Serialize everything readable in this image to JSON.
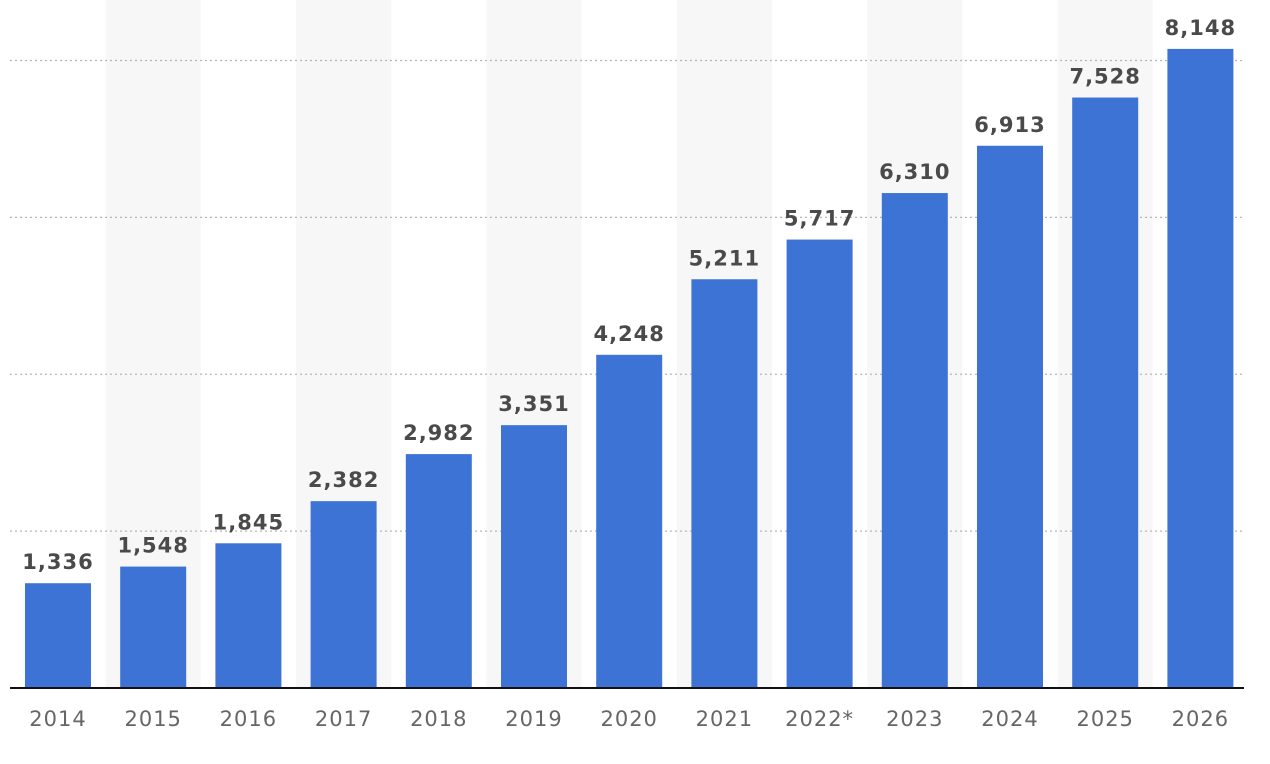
{
  "chart_data": {
    "type": "bar",
    "categories": [
      "2014",
      "2015",
      "2016",
      "2017",
      "2018",
      "2019",
      "2020",
      "2021",
      "2022*",
      "2023",
      "2024",
      "2025",
      "2026"
    ],
    "values": [
      1336,
      1548,
      1845,
      2382,
      2982,
      3351,
      4248,
      5211,
      5717,
      6310,
      6913,
      7528,
      8148
    ],
    "value_labels": [
      "1,336",
      "1,548",
      "1,845",
      "2,382",
      "2,982",
      "3,351",
      "4,248",
      "5,211",
      "5,717",
      "6,310",
      "6,913",
      "7,528",
      "8,148"
    ],
    "title": "",
    "xlabel": "",
    "ylabel": "",
    "ylim": [
      0,
      8000
    ],
    "grid": true,
    "bar_color": "#3e73d6",
    "alt_column_shading": "#f7f7f7"
  }
}
